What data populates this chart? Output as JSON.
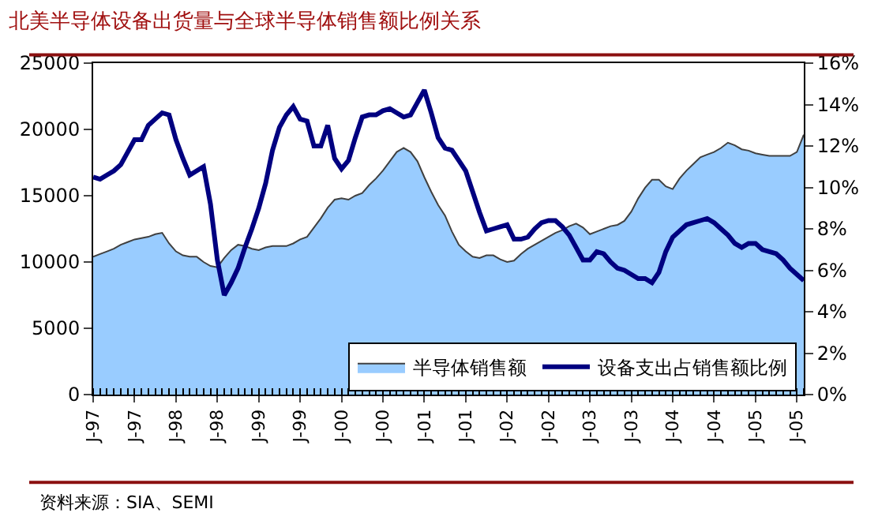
{
  "chart_data": {
    "type": "area",
    "title": "北美半导体设备出货量与全球半导体销售额比例关系",
    "categories": [
      "J-97",
      null,
      null,
      null,
      null,
      null,
      "J-97",
      null,
      null,
      null,
      null,
      null,
      "J-98",
      null,
      null,
      null,
      null,
      null,
      "J-98",
      null,
      null,
      null,
      null,
      null,
      "J-99",
      null,
      null,
      null,
      null,
      null,
      "J-99",
      null,
      null,
      null,
      null,
      null,
      "J-00",
      null,
      null,
      null,
      null,
      null,
      "J-00",
      null,
      null,
      null,
      null,
      null,
      "J-01",
      null,
      null,
      null,
      null,
      null,
      "J-01",
      null,
      null,
      null,
      null,
      null,
      "J-02",
      null,
      null,
      null,
      null,
      null,
      "J-02",
      null,
      null,
      null,
      null,
      null,
      "J-03",
      null,
      null,
      null,
      null,
      null,
      "J-03",
      null,
      null,
      null,
      null,
      null,
      "J-04",
      null,
      null,
      null,
      null,
      null,
      "J-04",
      null,
      null,
      null,
      null,
      null,
      "J-05",
      null,
      null,
      null,
      null,
      null,
      "J-05",
      null
    ],
    "series": [
      {
        "name": "半导体销售额",
        "color": "#99ccff",
        "values": [
          10400,
          10600,
          10800,
          11000,
          11300,
          11500,
          11700,
          11800,
          11900,
          12100,
          12200,
          11400,
          10800,
          10500,
          10400,
          10400,
          10000,
          9700,
          9600,
          10300,
          10900,
          11300,
          11200,
          11000,
          10900,
          11100,
          11200,
          11200,
          11200,
          11400,
          11700,
          11900,
          12600,
          13300,
          14100,
          14700,
          14800,
          14700,
          15000,
          15200,
          15800,
          16300,
          16900,
          17600,
          18300,
          18600,
          18300,
          17600,
          16400,
          15300,
          14300,
          13500,
          12300,
          11300,
          10800,
          10400,
          10300,
          10500,
          10500,
          10200,
          10000,
          10100,
          10600,
          11000,
          11300,
          11600,
          11900,
          12200,
          12400,
          12700,
          12900,
          12600,
          12100,
          12300,
          12500,
          12700,
          12800,
          13100,
          13800,
          14800,
          15600,
          16200,
          16200,
          15700,
          15500,
          16300,
          16900,
          17400,
          17900,
          18100,
          18300,
          18600,
          19000,
          18800,
          18500,
          18400,
          18200,
          18100,
          18000,
          18000,
          18000,
          18000,
          18300,
          19600
        ]
      },
      {
        "name": "设备支出占销售额比例",
        "type": "line",
        "axis": "y2",
        "color": "#000080",
        "values": [
          10.5,
          10.4,
          10.6,
          10.8,
          11.1,
          11.7,
          12.3,
          12.3,
          13.0,
          13.3,
          13.6,
          13.5,
          12.3,
          11.4,
          10.6,
          10.8,
          11.0,
          9.2,
          6.5,
          4.8,
          5.4,
          6.1,
          7.1,
          8.0,
          9.0,
          10.2,
          11.8,
          12.9,
          13.5,
          13.9,
          13.3,
          13.2,
          12.0,
          12.0,
          13.0,
          11.4,
          10.9,
          11.3,
          12.4,
          13.4,
          13.5,
          13.5,
          13.7,
          13.8,
          13.6,
          13.4,
          13.5,
          14.1,
          14.7,
          13.6,
          12.4,
          11.9,
          11.8,
          11.3,
          10.8,
          9.8,
          8.8,
          7.9,
          8.0,
          8.1,
          8.2,
          7.5,
          7.5,
          7.6,
          8.0,
          8.3,
          8.4,
          8.4,
          8.1,
          7.7,
          7.1,
          6.5,
          6.5,
          6.9,
          6.8,
          6.4,
          6.1,
          6.0,
          5.8,
          5.6,
          5.6,
          5.4,
          5.9,
          6.9,
          7.6,
          7.9,
          8.2,
          8.3,
          8.4,
          8.5,
          8.3,
          8.0,
          7.7,
          7.3,
          7.1,
          7.3,
          7.3,
          7.0,
          6.9,
          6.8,
          6.5,
          6.1,
          5.8,
          5.5
        ]
      }
    ],
    "ylim": [
      0,
      25000
    ],
    "yticks": [
      0,
      5000,
      10000,
      15000,
      20000,
      25000
    ],
    "y2lim": [
      0,
      16
    ],
    "y2ticks": [
      {
        "value": 0,
        "label": "0%"
      },
      {
        "value": 2,
        "label": "2%"
      },
      {
        "value": 4,
        "label": "4%"
      },
      {
        "value": 6,
        "label": "6%"
      },
      {
        "value": 8,
        "label": "8%"
      },
      {
        "value": 10,
        "label": "10%"
      },
      {
        "value": 12,
        "label": "12%"
      },
      {
        "value": 14,
        "label": "14%"
      },
      {
        "value": 16,
        "label": "16%"
      }
    ],
    "legend": "bottom right",
    "line_style": "solid",
    "marker": "none",
    "annotations": [
      "资料来源：SIA、SEMI"
    ]
  }
}
